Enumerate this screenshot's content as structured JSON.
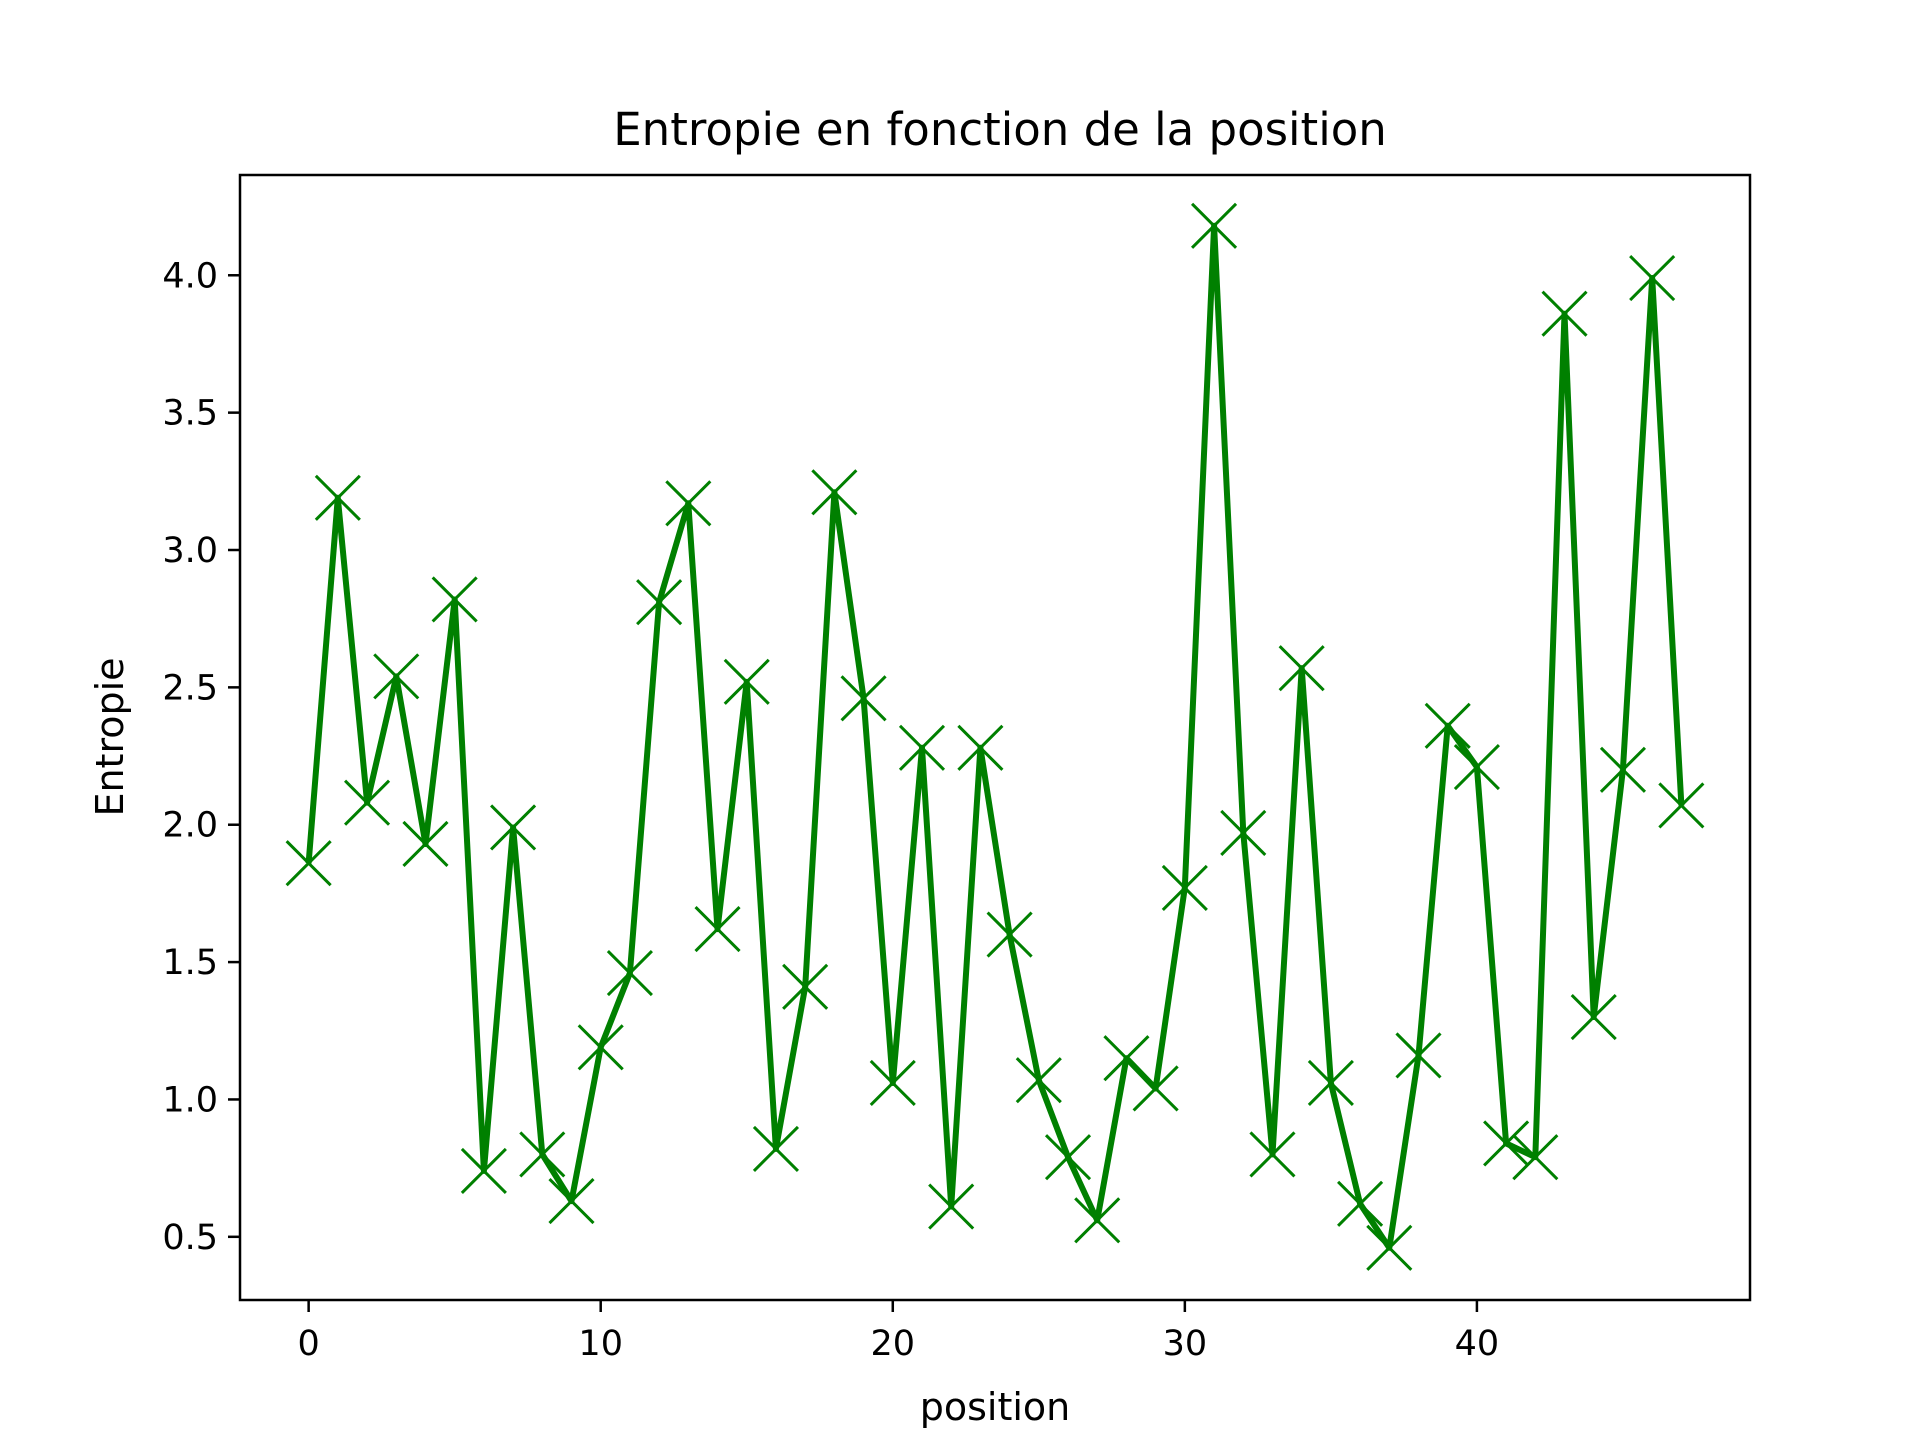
{
  "chart_data": {
    "type": "line",
    "title": "Entropie en fonction de la position",
    "xlabel": "position",
    "ylabel": "Entropie",
    "xlim": [
      -2.35,
      49.35
    ],
    "ylim": [
      0.27,
      4.365
    ],
    "xticks": [
      0,
      10,
      20,
      30,
      40
    ],
    "yticks": [
      0.5,
      1.0,
      1.5,
      2.0,
      2.5,
      3.0,
      3.5,
      4.0
    ],
    "xtick_labels": [
      "0",
      "10",
      "20",
      "30",
      "40"
    ],
    "ytick_labels": [
      "0.5",
      "1.0",
      "1.5",
      "2.0",
      "2.5",
      "3.0",
      "3.5",
      "4.0"
    ],
    "grid": false,
    "legend": null,
    "marker": "x",
    "color": "#008000",
    "series": [
      {
        "x": [
          0,
          1,
          2,
          3,
          4,
          5,
          6,
          7,
          8,
          9,
          10,
          11,
          12,
          13,
          14,
          15,
          16,
          17,
          18,
          19,
          20,
          21,
          22,
          23,
          24,
          25,
          26,
          27,
          28,
          29,
          30,
          31,
          32,
          33,
          34,
          35,
          36,
          37,
          38,
          39,
          40,
          41,
          42,
          43,
          44,
          45,
          46,
          47
        ],
        "values": [
          1.86,
          3.19,
          2.08,
          2.54,
          1.93,
          2.82,
          0.74,
          1.99,
          0.8,
          0.63,
          1.19,
          1.46,
          2.81,
          3.17,
          1.62,
          2.52,
          0.82,
          1.41,
          3.21,
          2.46,
          1.06,
          2.28,
          0.61,
          2.28,
          1.6,
          1.07,
          0.79,
          0.56,
          1.15,
          1.04,
          1.77,
          4.18,
          1.97,
          0.8,
          2.57,
          1.06,
          0.62,
          0.46,
          1.16,
          2.36,
          2.21,
          0.84,
          0.79,
          3.86,
          1.3,
          2.2,
          3.99,
          2.07
        ]
      }
    ]
  }
}
